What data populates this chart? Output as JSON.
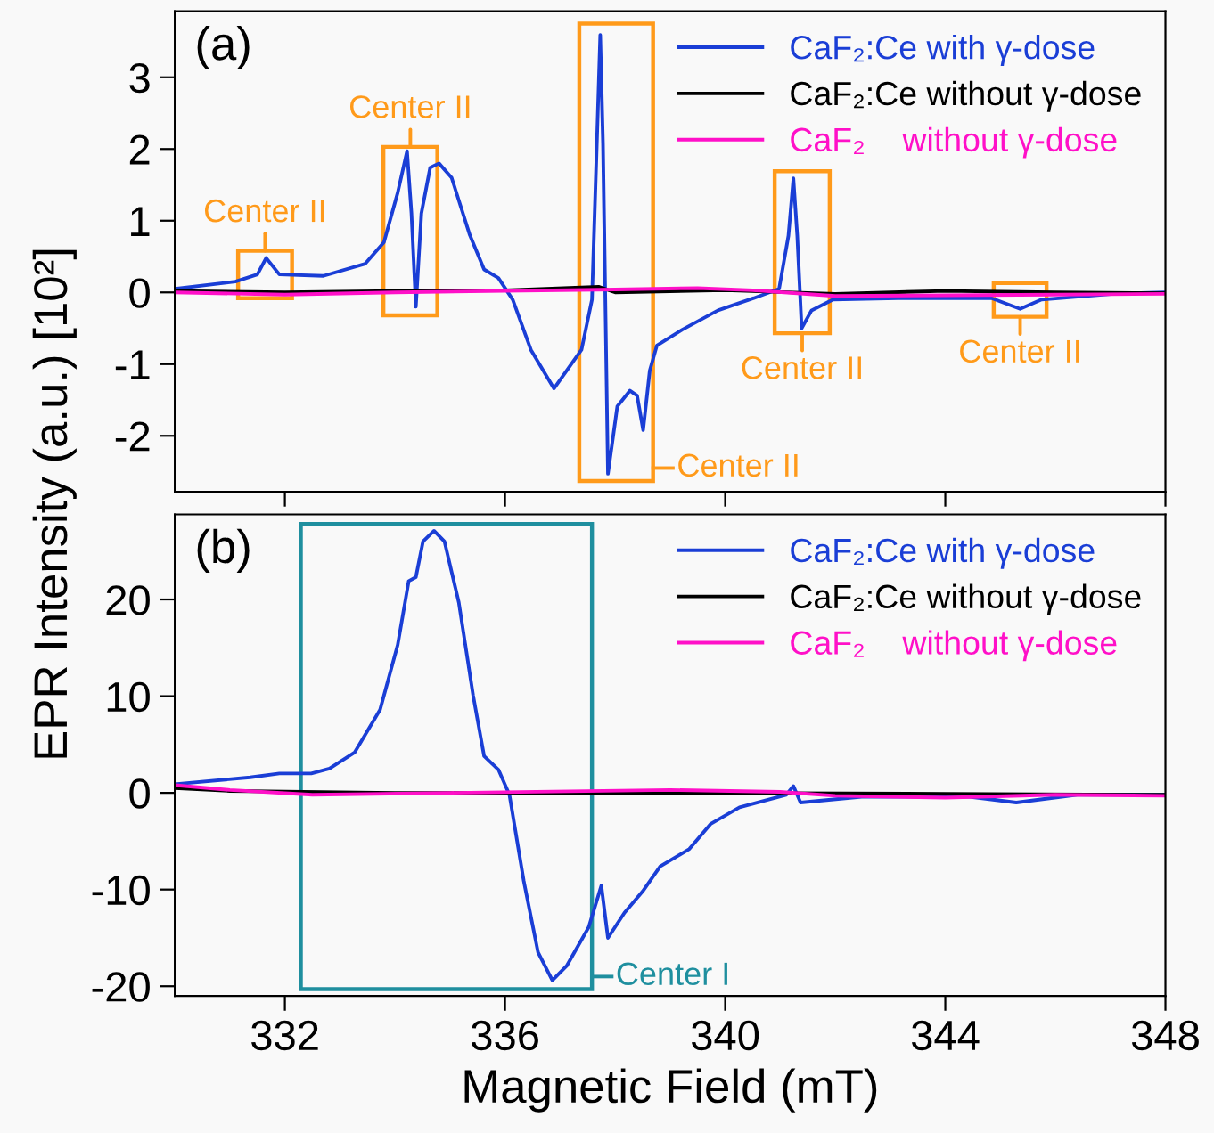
{
  "chart_data": [
    {
      "type": "line",
      "title": "(a)",
      "ylabel": "EPR Intensity (a.u.) [10²]",
      "xlim": [
        330,
        348
      ],
      "xticks": [
        332,
        336,
        340,
        344,
        348
      ],
      "ylim": [
        -2.78,
        3.92
      ],
      "yticks": [
        -2,
        -1,
        0,
        1,
        2,
        3
      ],
      "tick_labels": "y",
      "grid": false,
      "legend": "top right",
      "marker": "none",
      "line_style": "solid",
      "series": [
        {
          "name": "CaF₂:Ce with γ-dose",
          "color": "#1a3ed6",
          "x": [
            330,
            331.1,
            331.5,
            331.66,
            331.9,
            332.7,
            333.46,
            333.8,
            334.05,
            334.22,
            334.3,
            334.38,
            334.48,
            334.64,
            334.8,
            335.03,
            335.36,
            335.62,
            335.88,
            336.14,
            336.47,
            336.89,
            337.12,
            337.39,
            337.58,
            337.73,
            337.78,
            337.87,
            338.04,
            338.27,
            338.4,
            338.51,
            338.63,
            338.76,
            339.22,
            339.87,
            340.52,
            340.98,
            341.15,
            341.24,
            341.31,
            341.39,
            341.57,
            341.96,
            343.14,
            344.84,
            345.36,
            345.75,
            347.06,
            348
          ],
          "values": [
            0.05,
            0.15,
            0.25,
            0.48,
            0.25,
            0.23,
            0.4,
            0.7,
            1.39,
            1.97,
            1.1,
            -0.2,
            1.1,
            1.74,
            1.8,
            1.6,
            0.8,
            0.32,
            0.2,
            -0.1,
            -0.8,
            -1.34,
            -1.09,
            -0.8,
            -0.1,
            3.59,
            2.08,
            -2.53,
            -1.59,
            -1.37,
            -1.44,
            -1.92,
            -1.09,
            -0.74,
            -0.52,
            -0.25,
            -0.08,
            0.05,
            0.79,
            1.59,
            0.79,
            -0.5,
            -0.25,
            -0.1,
            -0.08,
            -0.08,
            -0.23,
            -0.1,
            -0.02,
            0
          ]
        },
        {
          "name": "CaF₂:Ce without γ-dose",
          "color": "#000000",
          "x": [
            330,
            332,
            334,
            336,
            337.7,
            338,
            340,
            342,
            344,
            346,
            348
          ],
          "values": [
            0.02,
            0.0,
            0.02,
            0.03,
            0.08,
            0.0,
            0.03,
            -0.02,
            0.02,
            0.0,
            -0.01
          ]
        },
        {
          "name": "CaF₂    without γ-dose",
          "color": "#ff10c8",
          "x": [
            330,
            332,
            334,
            336,
            338,
            339.5,
            340.5,
            342,
            344,
            346,
            348
          ],
          "values": [
            0.0,
            -0.03,
            0.0,
            0.02,
            0.04,
            0.06,
            0.03,
            -0.05,
            -0.04,
            -0.03,
            -0.02
          ]
        }
      ],
      "annotations": [
        {
          "text": "Center II",
          "x": 331.64,
          "y": 0.58
        },
        {
          "text": "Center II",
          "x": 334.28,
          "y": 2.03
        },
        {
          "text": "Center II",
          "x": 337.87,
          "y": -2.53
        },
        {
          "text": "Center II",
          "x": 341.4,
          "y": -0.57
        },
        {
          "text": "Center II",
          "x": 345.36,
          "y": -0.34
        }
      ]
    },
    {
      "type": "line",
      "title": "(b)",
      "xlabel": "Magnetic Field (mT)",
      "xlim": [
        330,
        348
      ],
      "xticks": [
        332,
        336,
        340,
        344,
        348
      ],
      "ylim": [
        -21,
        28.8
      ],
      "yticks": [
        -20,
        -10,
        0,
        10,
        20
      ],
      "grid": false,
      "legend": "top right",
      "marker": "none",
      "line_style": "solid",
      "series": [
        {
          "name": "CaF₂:Ce with γ-dose",
          "color": "#1a3ed6",
          "x": [
            330,
            331.37,
            331.9,
            332.48,
            332.81,
            333.27,
            333.73,
            334.05,
            334.25,
            334.38,
            334.51,
            334.71,
            334.9,
            335.16,
            335.42,
            335.62,
            335.88,
            336.08,
            336.34,
            336.6,
            336.86,
            337.12,
            337.52,
            337.75,
            337.87,
            338.17,
            338.5,
            338.82,
            339.35,
            339.74,
            340.26,
            341.11,
            341.24,
            341.37,
            342.48,
            344.44,
            345.29,
            346.4,
            348
          ],
          "values": [
            0.9,
            1.6,
            2.0,
            2.0,
            2.5,
            4.2,
            8.6,
            15.3,
            21.9,
            22.3,
            26.0,
            27.1,
            26.0,
            19.7,
            10.1,
            3.8,
            2.4,
            -0.2,
            -9.1,
            -16.5,
            -19.4,
            -17.9,
            -13.9,
            -9.6,
            -15.0,
            -12.4,
            -10.2,
            -7.6,
            -5.8,
            -3.2,
            -1.5,
            -0.2,
            0.7,
            -1.0,
            -0.4,
            -0.4,
            -1.0,
            -0.2,
            -0.2
          ]
        },
        {
          "name": "CaF₂:Ce without γ-dose",
          "color": "#000000",
          "x": [
            330,
            331,
            334,
            337,
            340,
            344,
            348
          ],
          "values": [
            0.5,
            0.2,
            0.0,
            0.0,
            0.0,
            -0.1,
            -0.2
          ]
        },
        {
          "name": "CaF₂    without γ-dose",
          "color": "#ff10c8",
          "x": [
            330,
            331,
            332.5,
            335,
            339,
            341,
            342,
            344,
            346,
            348
          ],
          "values": [
            0.8,
            0.3,
            -0.2,
            0.0,
            0.3,
            0.1,
            -0.3,
            -0.5,
            -0.2,
            -0.3
          ]
        }
      ],
      "annotations": [
        {
          "text": "Center I",
          "x": 336.86,
          "y": -19.4
        }
      ]
    }
  ]
}
